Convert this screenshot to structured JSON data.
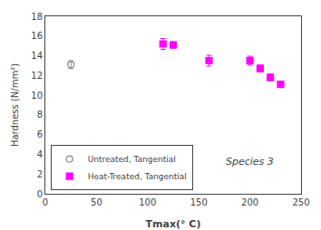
{
  "chart_data": {
    "type": "scatter",
    "xlabel": "Tmax(° C)",
    "ylabel": "Hardness (N/mm²)",
    "series": [
      {
        "name": "Untreated, Tangential",
        "color": "#888888",
        "marker": "circle-open",
        "x": [
          25
        ],
        "values": [
          13.1
        ],
        "yerr": [
          0.4
        ]
      },
      {
        "name": "Heat-Treated, Tangential",
        "color": "#ff00ff",
        "marker": "square",
        "x": [
          115,
          125,
          160,
          200,
          210,
          220,
          230
        ],
        "values": [
          15.2,
          15.1,
          13.5,
          13.5,
          12.7,
          11.8,
          11.1
        ],
        "yerr": [
          0.55,
          0.3,
          0.55,
          0.45,
          0.35,
          0.35,
          0.3
        ]
      }
    ],
    "annotations": [
      {
        "text": "Species 3",
        "x": 175,
        "y": 2.5
      }
    ],
    "xlim": [
      0,
      250
    ],
    "ylim": [
      0,
      18
    ],
    "xticks": [
      0,
      50,
      100,
      150,
      200,
      250
    ],
    "yticks": [
      0,
      2,
      4,
      6,
      8,
      10,
      12,
      14,
      16,
      18
    ],
    "grid": false,
    "legend": "lower left"
  }
}
